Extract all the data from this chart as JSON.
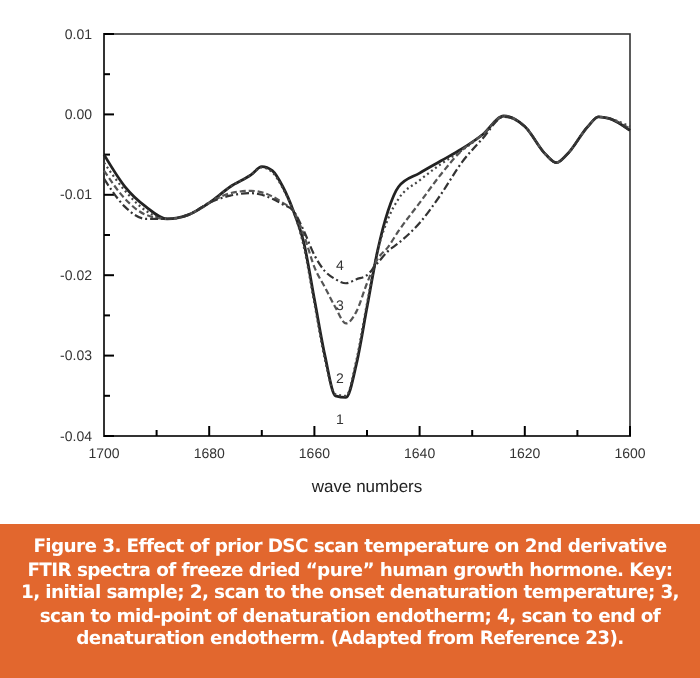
{
  "chart_data": {
    "type": "line",
    "xlabel": "wave numbers",
    "xlim": [
      1700,
      1600
    ],
    "ylim": [
      -0.04,
      0.01
    ],
    "xticks": [
      1700,
      {
        "value": 1690,
        "label": null
      },
      1680,
      {
        "value": 1670,
        "label": null
      },
      1660,
      {
        "value": 1650,
        "label": null
      },
      1640,
      {
        "value": 1630,
        "label": null
      },
      1620,
      {
        "value": 1610,
        "label": null
      },
      1600
    ],
    "yticks": [
      {
        "value": -0.04,
        "label": "-0.04"
      },
      {
        "value": -0.035,
        "label": null
      },
      {
        "value": -0.03,
        "label": "-0.03"
      },
      {
        "value": -0.025,
        "label": null
      },
      {
        "value": -0.02,
        "label": "-0.02"
      },
      {
        "value": -0.015,
        "label": null
      },
      {
        "value": -0.01,
        "label": "-0.01"
      },
      {
        "value": -0.005,
        "label": null
      },
      {
        "value": 0,
        "label": "0.00"
      },
      {
        "value": 0.005,
        "label": null
      },
      {
        "value": 0.01,
        "label": "0.01"
      }
    ],
    "x": [
      1700,
      1696,
      1692,
      1688,
      1684,
      1680,
      1676,
      1672,
      1670,
      1668,
      1666,
      1664,
      1662,
      1660,
      1658,
      1656,
      1654,
      1652,
      1650,
      1648,
      1646,
      1644,
      1640,
      1636,
      1632,
      1628,
      1624,
      1620,
      1616,
      1614,
      1612,
      1608,
      1606,
      1604,
      1600
    ],
    "series": [
      {
        "name": "1",
        "color": "#222222",
        "line_style": "solid",
        "values": [
          -0.005,
          -0.009,
          -0.0115,
          -0.013,
          -0.0125,
          -0.011,
          -0.009,
          -0.0075,
          -0.0065,
          -0.007,
          -0.009,
          -0.012,
          -0.016,
          -0.023,
          -0.03,
          -0.035,
          -0.0352,
          -0.031,
          -0.024,
          -0.017,
          -0.012,
          -0.009,
          -0.0073,
          -0.0058,
          -0.0043,
          -0.0025,
          -0.0002,
          -0.0015,
          -0.005,
          -0.006,
          -0.005,
          -0.0015,
          -0.0003,
          -0.0005,
          -0.002
        ]
      },
      {
        "name": "2",
        "color": "#444444",
        "line_style": "dotted",
        "values": [
          -0.006,
          -0.0095,
          -0.012,
          -0.013,
          -0.0125,
          -0.011,
          -0.009,
          -0.0075,
          -0.0066,
          -0.0072,
          -0.0092,
          -0.012,
          -0.0165,
          -0.0235,
          -0.0305,
          -0.0348,
          -0.035,
          -0.0305,
          -0.0235,
          -0.017,
          -0.013,
          -0.0105,
          -0.0082,
          -0.0062,
          -0.0045,
          -0.0025,
          -0.0002,
          -0.0015,
          -0.005,
          -0.006,
          -0.005,
          -0.0015,
          -0.0003,
          -0.0005,
          -0.0015
        ]
      },
      {
        "name": "3",
        "color": "#555555",
        "line_style": "dashed",
        "values": [
          -0.007,
          -0.0105,
          -0.0125,
          -0.013,
          -0.0125,
          -0.011,
          -0.0098,
          -0.0095,
          -0.0097,
          -0.0102,
          -0.011,
          -0.012,
          -0.015,
          -0.019,
          -0.0215,
          -0.024,
          -0.026,
          -0.0245,
          -0.021,
          -0.018,
          -0.0165,
          -0.0145,
          -0.011,
          -0.0075,
          -0.0045,
          -0.0025,
          -0.0002,
          -0.0015,
          -0.005,
          -0.006,
          -0.005,
          -0.0015,
          -0.0003,
          -0.0005,
          -0.0018
        ]
      },
      {
        "name": "4",
        "color": "#333333",
        "line_style": "dashdot",
        "values": [
          -0.008,
          -0.0115,
          -0.013,
          -0.013,
          -0.0125,
          -0.011,
          -0.0101,
          -0.0098,
          -0.01,
          -0.0105,
          -0.0112,
          -0.012,
          -0.0145,
          -0.0175,
          -0.0195,
          -0.0205,
          -0.021,
          -0.0205,
          -0.02,
          -0.0185,
          -0.017,
          -0.016,
          -0.0135,
          -0.01,
          -0.006,
          -0.003,
          -0.0003,
          -0.0015,
          -0.005,
          -0.006,
          -0.005,
          -0.0015,
          -0.0003,
          -0.0005,
          -0.002
        ]
      }
    ],
    "annotations": [
      "Figure 3. Effect of prior DSC scan temperature on 2nd derivative FTIR spectra of freeze dried “pure” human growth hormone. Key: 1, initial sample; 2, scan to the onset denaturation temperature; 3, scan to mid-point of denaturation endotherm; 4, scan to end of denaturation endotherm. (Adapted from Reference 23)."
    ]
  }
}
